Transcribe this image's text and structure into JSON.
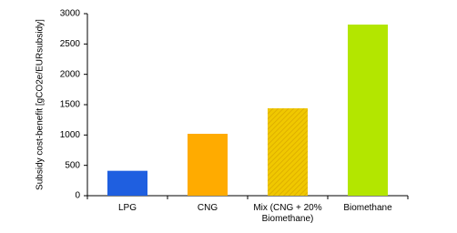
{
  "chart_data": {
    "type": "bar",
    "y_label": "Subsidy cost-benefit [gCO2e/EURsubsidy]",
    "categories": [
      "LPG",
      "CNG",
      "Mix (CNG + 20% Biomethane)",
      "Biomethane"
    ],
    "values": [
      410,
      1020,
      1440,
      2820
    ],
    "colors": [
      "#1f5fe0",
      "#ffab00",
      "#f0c800",
      "#b3e600"
    ],
    "hatched": [
      false,
      false,
      true,
      false
    ],
    "ylim": [
      0,
      3000
    ],
    "yticks": [
      0,
      500,
      1000,
      1500,
      2000,
      2500,
      3000
    ],
    "grid": false
  }
}
